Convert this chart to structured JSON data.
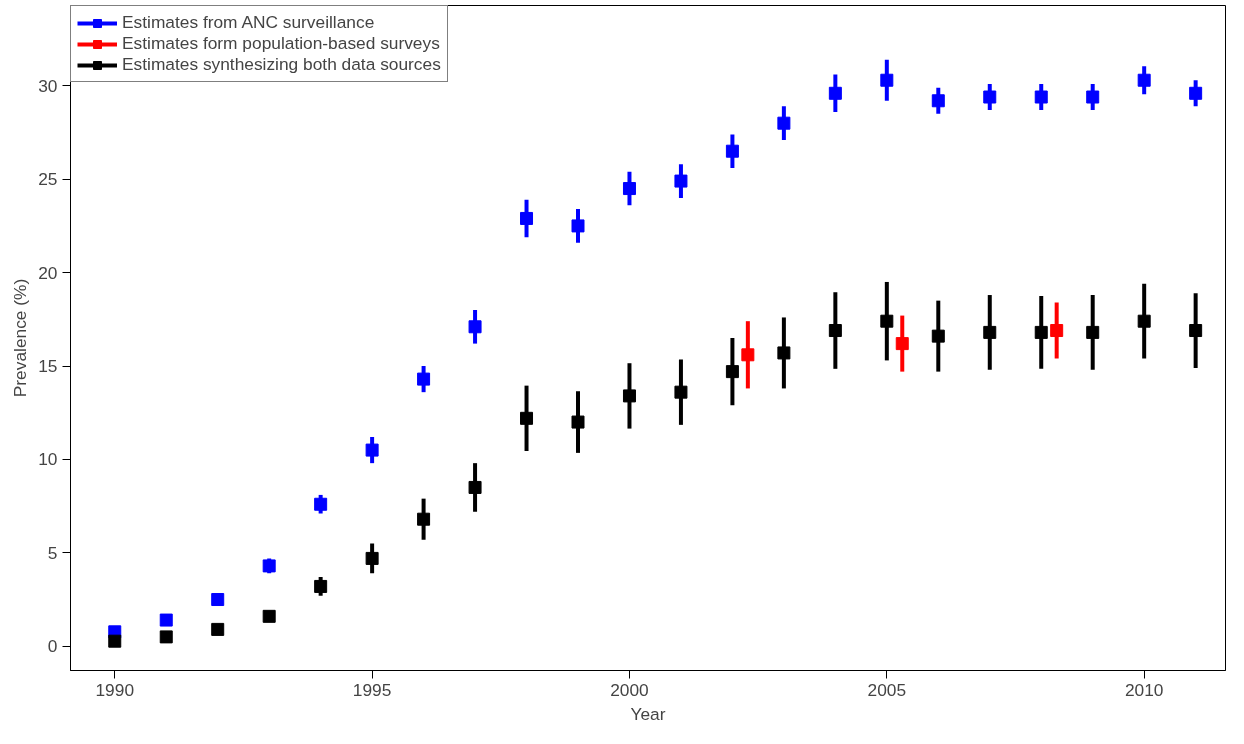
{
  "chart_data": {
    "type": "scatter",
    "xlabel": "Year",
    "ylabel": "Prevalence (%)",
    "xlim": [
      1989.14,
      2011.58
    ],
    "ylim": [
      -1.3,
      34.3
    ],
    "xticks": [
      1990,
      1995,
      2000,
      2005,
      2010
    ],
    "yticks": [
      0,
      5,
      10,
      15,
      20,
      25,
      30
    ],
    "grid": false,
    "legend": "top left",
    "marker": "square",
    "series": [
      {
        "name": "Estimates from ANC surveillance",
        "color": "#0000ff",
        "x": [
          1990,
          1991,
          1992,
          1993,
          1994,
          1995,
          1996,
          1997,
          1998,
          1999,
          2000,
          2001,
          2002,
          2003,
          2004,
          2005,
          2006,
          2007,
          2008,
          2009,
          2010,
          2011
        ],
        "values": [
          0.77,
          1.4,
          2.5,
          4.3,
          7.6,
          10.5,
          14.3,
          17.1,
          22.9,
          22.5,
          24.5,
          24.9,
          26.5,
          28.0,
          29.6,
          30.3,
          29.2,
          29.4,
          29.4,
          29.4,
          30.3,
          29.6
        ],
        "errors": [
          null,
          null,
          null,
          0.4,
          0.5,
          0.7,
          0.7,
          0.9,
          1.0,
          0.9,
          0.9,
          0.9,
          0.9,
          0.9,
          1.0,
          1.1,
          0.7,
          0.7,
          0.7,
          0.7,
          0.75,
          0.7
        ]
      },
      {
        "name": "Estimates form population-based surveys",
        "color": "#ff0000",
        "x": [
          2002.3,
          2005.3,
          2008.3
        ],
        "values": [
          15.6,
          16.2,
          16.9
        ],
        "errors": [
          1.8,
          1.5,
          1.5
        ]
      },
      {
        "name": "Estimates synthesizing both data sources",
        "color": "#000000",
        "x": [
          1990,
          1991,
          1992,
          1993,
          1994,
          1995,
          1996,
          1997,
          1998,
          1999,
          2000,
          2001,
          2002,
          2003,
          2004,
          2005,
          2006,
          2007,
          2008,
          2009,
          2010,
          2011
        ],
        "values": [
          0.27,
          0.5,
          0.9,
          1.6,
          3.2,
          4.7,
          6.8,
          8.5,
          12.2,
          12.0,
          13.4,
          13.6,
          14.7,
          15.7,
          16.9,
          17.4,
          16.6,
          16.8,
          16.8,
          16.8,
          17.4,
          16.9
        ],
        "errors": [
          null,
          null,
          null,
          0.2,
          0.5,
          0.8,
          1.1,
          1.3,
          1.75,
          1.65,
          1.75,
          1.75,
          1.8,
          1.9,
          2.05,
          2.1,
          1.9,
          2.0,
          1.95,
          2.0,
          2.0,
          2.0
        ]
      }
    ]
  }
}
